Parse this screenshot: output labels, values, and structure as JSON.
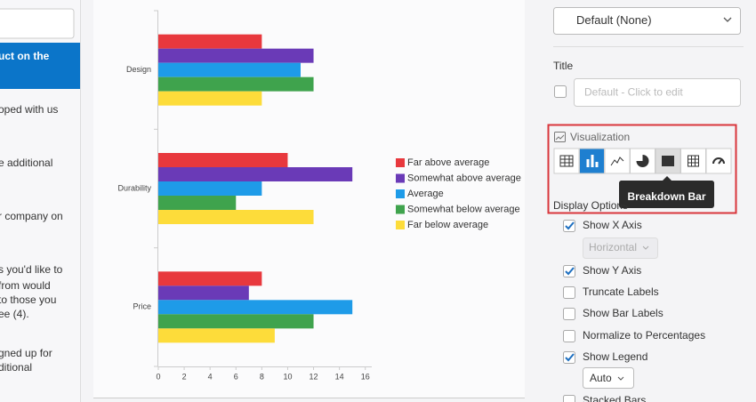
{
  "sidebar": {
    "items": [
      {
        "lines": [
          "uct on the"
        ]
      },
      {
        "lines": [
          "oped with us"
        ]
      },
      {
        "lines": [
          "e additional"
        ]
      },
      {
        "lines": [
          "r company on"
        ]
      },
      {
        "lines": [
          "s you'd like to",
          " from would",
          "to those you",
          "ee (4)."
        ]
      },
      {
        "lines": [
          "gned up for",
          "ditional"
        ]
      }
    ]
  },
  "settings": {
    "dropdown": "Default (None)",
    "title_label": "Title",
    "title_placeholder": "Default - Click to edit",
    "visualization_label": "Visualization",
    "tooltip": "Breakdown Bar",
    "display_options_label": "Display Options",
    "options": [
      {
        "name": "Show X Axis",
        "checked": true
      },
      {
        "name": "Show Y Axis",
        "checked": true
      },
      {
        "name": "Truncate Labels",
        "checked": false
      },
      {
        "name": "Show Bar Labels",
        "checked": false
      },
      {
        "name": "Normalize to Percentages",
        "checked": false
      },
      {
        "name": "Show Legend",
        "checked": true
      },
      {
        "name": "Stacked Bars",
        "checked": false
      }
    ],
    "x_axis_orientation": "Horizontal",
    "legend_position": "Auto"
  },
  "chart_data": {
    "type": "hbar",
    "categories": [
      "Design",
      "Durability",
      "Price"
    ],
    "series": [
      {
        "name": "Far above average",
        "color": "#e8383d",
        "values": [
          8,
          10,
          8
        ]
      },
      {
        "name": "Somewhat above average",
        "color": "#6a3ab7",
        "values": [
          12,
          15,
          7
        ]
      },
      {
        "name": "Average",
        "color": "#1e9be8",
        "values": [
          11,
          8,
          15
        ]
      },
      {
        "name": "Somewhat below average",
        "color": "#3fa34d",
        "values": [
          12,
          6,
          12
        ]
      },
      {
        "name": "Far below average",
        "color": "#fddc3a",
        "values": [
          8,
          12,
          9
        ]
      }
    ],
    "xlim": [
      0,
      16.5
    ],
    "xticks": [
      0,
      2,
      4,
      6,
      8,
      10,
      12,
      14,
      16
    ],
    "legend": "right"
  }
}
